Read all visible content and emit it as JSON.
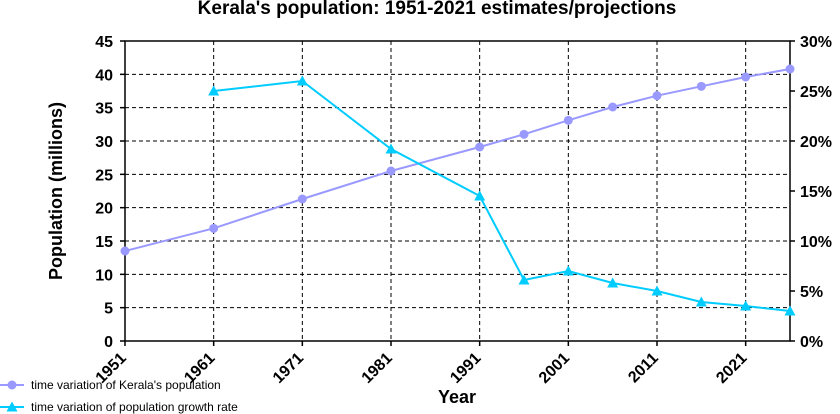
{
  "chart_data": {
    "type": "line",
    "title": "Kerala's population: 1951-2021 estimates/projections",
    "xlabel": "Year",
    "ylabel": "Population (millions)",
    "x_tick_labels": [
      "1951",
      "1961",
      "1971",
      "1981",
      "1991",
      "2001",
      "2011",
      "2021"
    ],
    "xlim": [
      1951,
      2026
    ],
    "ylim": [
      0,
      45
    ],
    "y_ticks": [
      0,
      5,
      10,
      15,
      20,
      25,
      30,
      35,
      40,
      45
    ],
    "y2lim": [
      0,
      30
    ],
    "y2_ticks": [
      0,
      5,
      10,
      15,
      20,
      25,
      30
    ],
    "y2_tick_suffix": "%",
    "grid": true,
    "legend_position": "bottom-left",
    "series": [
      {
        "name": "time variation of Kerala's population",
        "axis": "left",
        "color": "#9999ff",
        "marker": "circle",
        "x": [
          1951,
          1961,
          1971,
          1981,
          1991,
          1996,
          2001,
          2006,
          2011,
          2016,
          2021,
          2026
        ],
        "y": [
          13.5,
          16.9,
          21.3,
          25.5,
          29.1,
          31.0,
          33.1,
          35.1,
          36.8,
          38.2,
          39.6,
          40.8
        ]
      },
      {
        "name": "time variation of population growth rate",
        "axis": "right",
        "color": "#00ccff",
        "marker": "triangle",
        "x": [
          1961,
          1971,
          1981,
          1991,
          1996,
          2001,
          2006,
          2011,
          2016,
          2021,
          2026
        ],
        "y": [
          25.0,
          26.0,
          19.2,
          14.5,
          6.1,
          7.0,
          5.8,
          5.0,
          3.9,
          3.5,
          3.0
        ]
      }
    ]
  }
}
